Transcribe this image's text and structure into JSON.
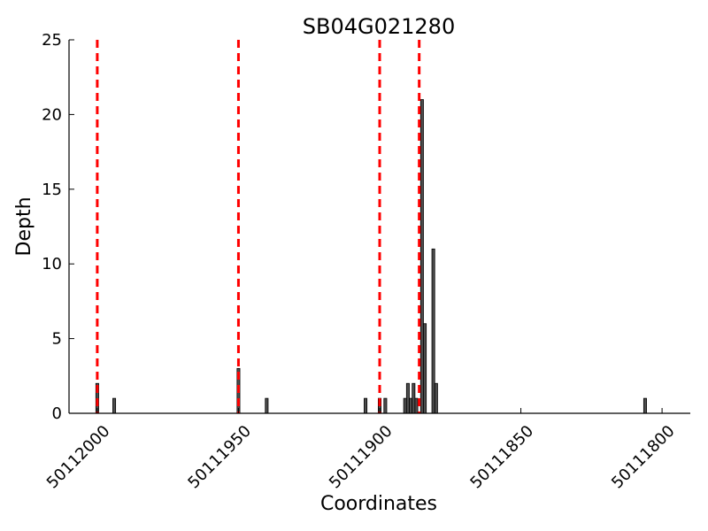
{
  "chart_data": {
    "type": "bar",
    "title": "SB04G021280",
    "xlabel": "Coordinates",
    "ylabel": "Depth",
    "x_reversed": true,
    "xlim": [
      50112010,
      50111790
    ],
    "ylim": [
      0,
      25
    ],
    "xticks": [
      50112000,
      50111950,
      50111900,
      50111850,
      50111800
    ],
    "xtick_labels": [
      "50112000",
      "50111950",
      "50111900",
      "50111850",
      "50111800"
    ],
    "yticks": [
      0,
      5,
      10,
      15,
      20,
      25
    ],
    "ytick_labels": [
      "0",
      "5",
      "10",
      "15",
      "20",
      "25"
    ],
    "grid": false,
    "bar_color": "#4d4d4d",
    "bars": [
      {
        "x": 50112000,
        "y": 2
      },
      {
        "x": 50111994,
        "y": 1
      },
      {
        "x": 50111950,
        "y": 3
      },
      {
        "x": 50111940,
        "y": 1
      },
      {
        "x": 50111905,
        "y": 1
      },
      {
        "x": 50111900,
        "y": 1
      },
      {
        "x": 50111898,
        "y": 1
      },
      {
        "x": 50111891,
        "y": 1
      },
      {
        "x": 50111890,
        "y": 2
      },
      {
        "x": 50111889,
        "y": 1
      },
      {
        "x": 50111888,
        "y": 2
      },
      {
        "x": 50111887,
        "y": 1
      },
      {
        "x": 50111885,
        "y": 21
      },
      {
        "x": 50111884,
        "y": 6
      },
      {
        "x": 50111881,
        "y": 11
      },
      {
        "x": 50111880,
        "y": 2
      },
      {
        "x": 50111806,
        "y": 1
      }
    ],
    "reference_lines": {
      "color": "#ff0000",
      "style": "dashed",
      "x": [
        50112000,
        50111950,
        50111900,
        50111886
      ]
    }
  }
}
